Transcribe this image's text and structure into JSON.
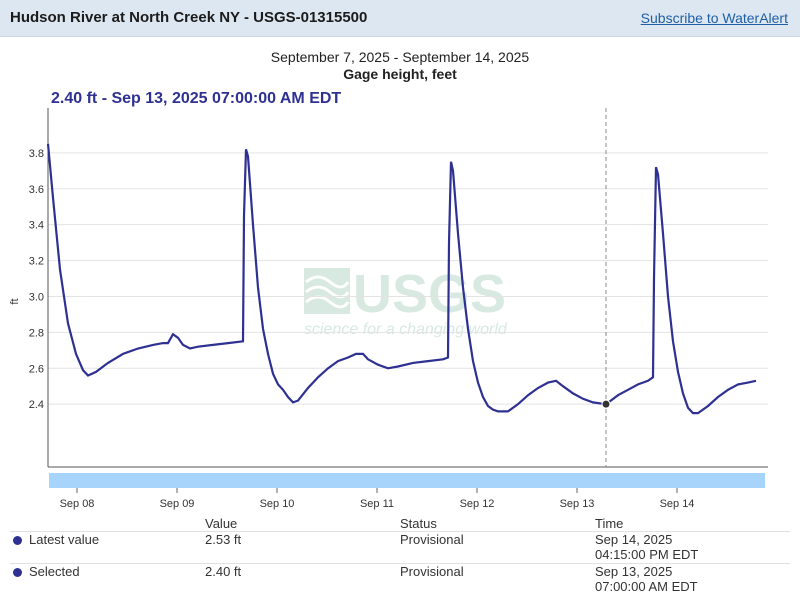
{
  "header": {
    "site_title": "Hudson River at North Creek NY - USGS-01315500",
    "subscribe_label": "Subscribe to WaterAlert"
  },
  "chart_titles": {
    "date_range": "September 7, 2025 - September 14, 2025",
    "parameter": "Gage height, feet"
  },
  "tooltip": {
    "text": "2.40 ft - Sep 13, 2025 07:00:00 AM EDT"
  },
  "watermark": {
    "logo_text": "USGS",
    "tagline": "science for a changing world"
  },
  "chart_data": {
    "type": "line",
    "title": "September 7, 2025 - September 14, 2025",
    "subtitle": "Gage height, feet",
    "ylabel": "ft",
    "xlabel": "",
    "xlim": [
      0.8,
      8.0
    ],
    "ylim": [
      2.05,
      4.05
    ],
    "y_ticks": [
      2.4,
      2.6,
      2.8,
      3.0,
      3.2,
      3.4,
      3.6,
      3.8
    ],
    "x_ticks": [
      {
        "x": 1.09,
        "label": "Sep 08"
      },
      {
        "x": 2.09,
        "label": "Sep 09"
      },
      {
        "x": 3.09,
        "label": "Sep 10"
      },
      {
        "x": 4.09,
        "label": "Sep 11"
      },
      {
        "x": 5.09,
        "label": "Sep 12"
      },
      {
        "x": 6.09,
        "label": "Sep 13"
      },
      {
        "x": 7.09,
        "label": "Sep 14"
      }
    ],
    "grid": true,
    "color": "#2e3192",
    "selected": {
      "x": 6.38,
      "y": 2.4
    },
    "series": [
      {
        "values": [
          [
            0.8,
            3.85
          ],
          [
            0.85,
            3.55
          ],
          [
            0.92,
            3.15
          ],
          [
            1.0,
            2.85
          ],
          [
            1.08,
            2.68
          ],
          [
            1.15,
            2.59
          ],
          [
            1.2,
            2.56
          ],
          [
            1.28,
            2.58
          ],
          [
            1.4,
            2.63
          ],
          [
            1.55,
            2.68
          ],
          [
            1.7,
            2.71
          ],
          [
            1.85,
            2.73
          ],
          [
            1.95,
            2.74
          ],
          [
            2.0,
            2.74
          ],
          [
            2.05,
            2.79
          ],
          [
            2.1,
            2.77
          ],
          [
            2.15,
            2.73
          ],
          [
            2.22,
            2.71
          ],
          [
            2.3,
            2.72
          ],
          [
            2.45,
            2.73
          ],
          [
            2.6,
            2.74
          ],
          [
            2.75,
            2.75
          ],
          [
            2.76,
            3.45
          ],
          [
            2.78,
            3.82
          ],
          [
            2.8,
            3.78
          ],
          [
            2.85,
            3.4
          ],
          [
            2.9,
            3.05
          ],
          [
            2.95,
            2.82
          ],
          [
            3.0,
            2.68
          ],
          [
            3.05,
            2.57
          ],
          [
            3.1,
            2.51
          ],
          [
            3.15,
            2.48
          ],
          [
            3.2,
            2.44
          ],
          [
            3.25,
            2.41
          ],
          [
            3.3,
            2.42
          ],
          [
            3.4,
            2.49
          ],
          [
            3.5,
            2.55
          ],
          [
            3.6,
            2.6
          ],
          [
            3.7,
            2.64
          ],
          [
            3.8,
            2.66
          ],
          [
            3.88,
            2.68
          ],
          [
            3.95,
            2.68
          ],
          [
            4.0,
            2.65
          ],
          [
            4.1,
            2.62
          ],
          [
            4.2,
            2.6
          ],
          [
            4.3,
            2.61
          ],
          [
            4.45,
            2.63
          ],
          [
            4.6,
            2.64
          ],
          [
            4.75,
            2.65
          ],
          [
            4.8,
            2.66
          ],
          [
            4.81,
            3.3
          ],
          [
            4.83,
            3.75
          ],
          [
            4.85,
            3.7
          ],
          [
            4.9,
            3.35
          ],
          [
            4.95,
            3.05
          ],
          [
            5.0,
            2.82
          ],
          [
            5.05,
            2.64
          ],
          [
            5.1,
            2.52
          ],
          [
            5.15,
            2.44
          ],
          [
            5.2,
            2.39
          ],
          [
            5.25,
            2.37
          ],
          [
            5.3,
            2.36
          ],
          [
            5.4,
            2.36
          ],
          [
            5.5,
            2.4
          ],
          [
            5.6,
            2.45
          ],
          [
            5.7,
            2.49
          ],
          [
            5.8,
            2.52
          ],
          [
            5.88,
            2.53
          ],
          [
            5.95,
            2.5
          ],
          [
            6.05,
            2.46
          ],
          [
            6.15,
            2.43
          ],
          [
            6.25,
            2.41
          ],
          [
            6.38,
            2.4
          ],
          [
            6.5,
            2.45
          ],
          [
            6.6,
            2.48
          ],
          [
            6.7,
            2.51
          ],
          [
            6.8,
            2.53
          ],
          [
            6.85,
            2.55
          ],
          [
            6.86,
            3.1
          ],
          [
            6.88,
            3.72
          ],
          [
            6.9,
            3.68
          ],
          [
            6.95,
            3.35
          ],
          [
            7.0,
            3.0
          ],
          [
            7.05,
            2.75
          ],
          [
            7.1,
            2.58
          ],
          [
            7.15,
            2.46
          ],
          [
            7.2,
            2.38
          ],
          [
            7.25,
            2.35
          ],
          [
            7.3,
            2.35
          ],
          [
            7.4,
            2.39
          ],
          [
            7.5,
            2.44
          ],
          [
            7.6,
            2.48
          ],
          [
            7.7,
            2.51
          ],
          [
            7.8,
            2.52
          ],
          [
            7.88,
            2.53
          ]
        ]
      }
    ]
  },
  "table": {
    "headers": {
      "value": "Value",
      "status": "Status",
      "time": "Time"
    },
    "rows": [
      {
        "label": "Latest value",
        "value": "2.53 ft",
        "status": "Provisional",
        "time_date": "Sep 14, 2025",
        "time_clock": "04:15:00 PM EDT"
      },
      {
        "label": "Selected",
        "value": "2.40 ft",
        "status": "Provisional",
        "time_date": "Sep 13, 2025",
        "time_clock": "07:00:00 AM EDT"
      }
    ]
  }
}
